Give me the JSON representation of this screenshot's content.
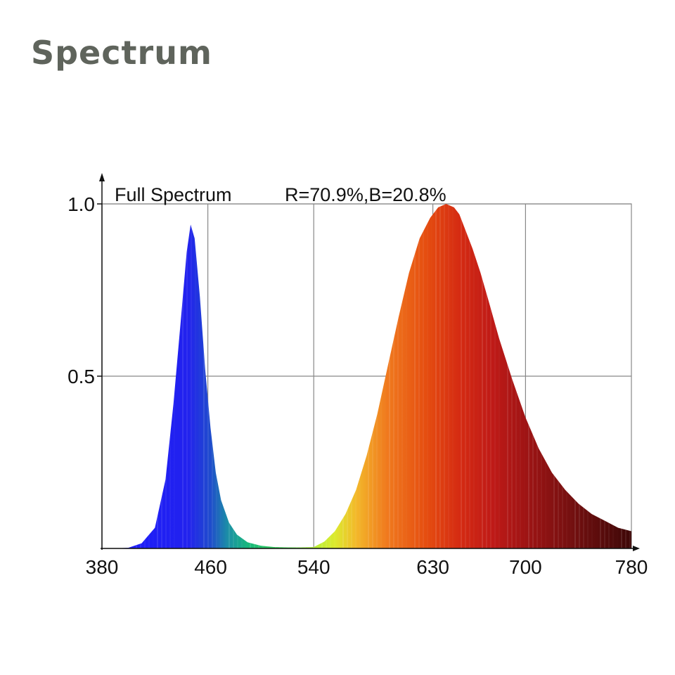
{
  "page": {
    "heading": "Spectrum"
  },
  "chart_data": {
    "type": "area",
    "title": "Full Spectrum",
    "subtitle": "R=70.9%,B=20.8%",
    "xlabel": "",
    "ylabel": "",
    "xlim": [
      380,
      780
    ],
    "ylim": [
      0,
      1.0
    ],
    "x_ticks": [
      "380",
      "460",
      "540",
      "630",
      "700",
      "780"
    ],
    "x_tick_values": [
      380,
      460,
      540,
      630,
      700,
      780
    ],
    "y_ticks": [
      "1.0",
      "0.5"
    ],
    "y_tick_values": [
      1.0,
      0.5
    ],
    "grid": true,
    "legend": "none",
    "series": [
      {
        "x": [
          380,
          390,
          400,
          410,
          420,
          428,
          434,
          440,
          444,
          447,
          450,
          454,
          458,
          462,
          466,
          470,
          476,
          482,
          490,
          500,
          510,
          520,
          530,
          540,
          548,
          556,
          564,
          572,
          580,
          588,
          596,
          604,
          612,
          620,
          628,
          634,
          640,
          646,
          650,
          654,
          660,
          666,
          672,
          680,
          690,
          700,
          710,
          720,
          730,
          740,
          750,
          760,
          770,
          780
        ],
        "values": [
          0.0,
          0.0,
          0.002,
          0.015,
          0.06,
          0.2,
          0.42,
          0.68,
          0.86,
          0.94,
          0.9,
          0.73,
          0.52,
          0.35,
          0.22,
          0.14,
          0.075,
          0.04,
          0.018,
          0.008,
          0.004,
          0.003,
          0.003,
          0.004,
          0.02,
          0.05,
          0.1,
          0.17,
          0.27,
          0.39,
          0.53,
          0.67,
          0.8,
          0.9,
          0.96,
          0.99,
          1.0,
          0.99,
          0.97,
          0.93,
          0.87,
          0.8,
          0.72,
          0.61,
          0.49,
          0.38,
          0.29,
          0.22,
          0.17,
          0.13,
          0.1,
          0.08,
          0.06,
          0.05
        ]
      }
    ]
  }
}
